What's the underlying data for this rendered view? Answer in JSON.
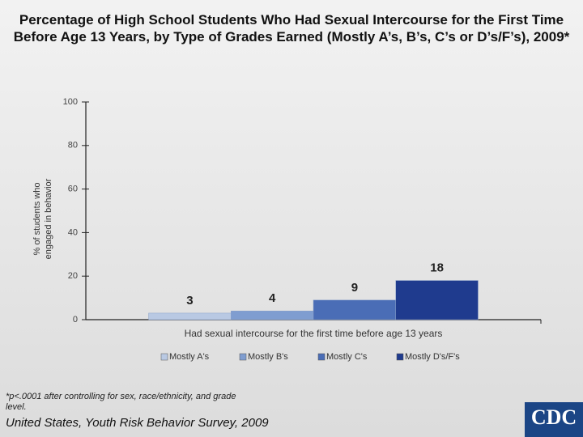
{
  "chart_data": {
    "type": "bar",
    "title": [
      "Percentage of High School Students Who Had Sexual Intercourse for the First Time",
      "Before Age 13 Years, by Type of Grades Earned (Mostly A’s, B’s, C’s or D’s/F’s), 2009*"
    ],
    "ylabel": [
      "% of students who",
      "engaged in behavior"
    ],
    "categories": [
      "Had sexual intercourse for the first time before age 13 years"
    ],
    "series": [
      {
        "name": "Mostly A's",
        "color": "#b9c9e3",
        "values": [
          3
        ]
      },
      {
        "name": "Mostly B's",
        "color": "#7f9dd0",
        "values": [
          4
        ]
      },
      {
        "name": "Mostly C's",
        "color": "#4a6db6",
        "values": [
          9
        ]
      },
      {
        "name": "Mostly D's/F's",
        "color": "#1f3b8e",
        "values": [
          18
        ]
      }
    ],
    "ylim": [
      0,
      100
    ],
    "yticks": [
      0,
      20,
      40,
      60,
      80,
      100
    ],
    "legend": "bottom",
    "footnote": "*p<.0001 after controlling for sex, race/ethnicity, and grade level.",
    "source": "United States, Youth Risk Behavior Survey, 2009",
    "logo": "CDC"
  }
}
